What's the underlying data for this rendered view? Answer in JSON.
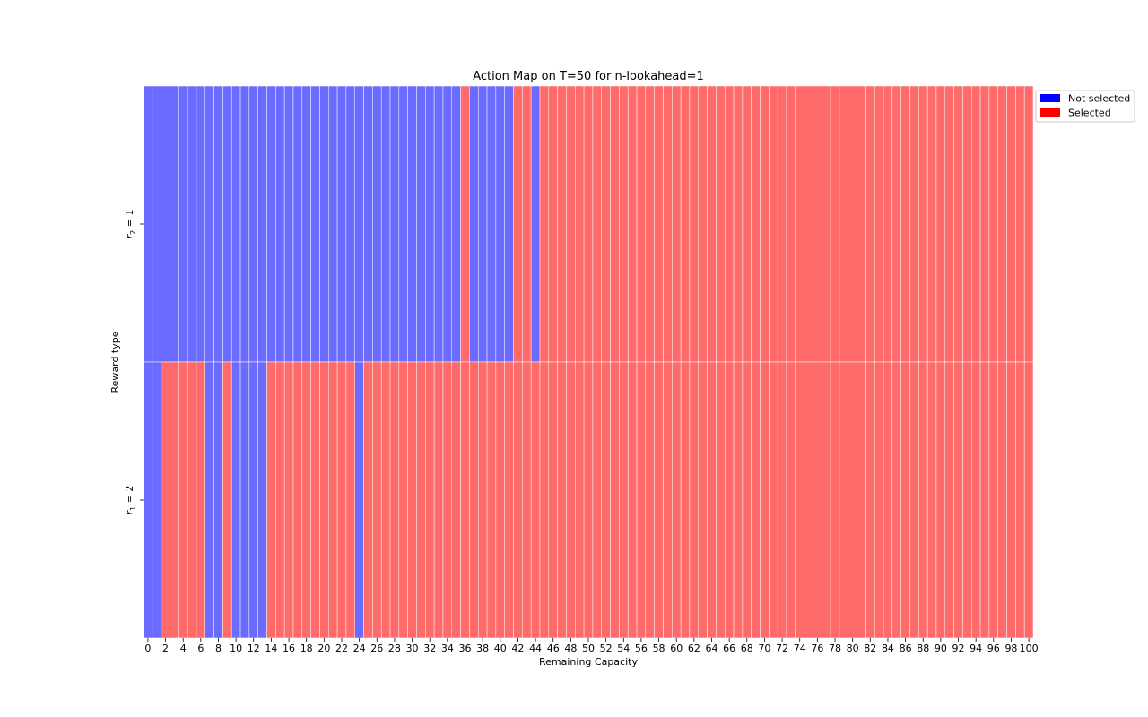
{
  "chart_data": {
    "type": "heatmap",
    "title": "Action Map on T=50 for n-lookahead=1",
    "xlabel": "Remaining Capacity",
    "ylabel": "Reward type",
    "x": [
      0,
      1,
      2,
      3,
      4,
      5,
      6,
      7,
      8,
      9,
      10,
      11,
      12,
      13,
      14,
      15,
      16,
      17,
      18,
      19,
      20,
      21,
      22,
      23,
      24,
      25,
      26,
      27,
      28,
      29,
      30,
      31,
      32,
      33,
      34,
      35,
      36,
      37,
      38,
      39,
      40,
      41,
      42,
      43,
      44,
      45,
      46,
      47,
      48,
      49,
      50,
      51,
      52,
      53,
      54,
      55,
      56,
      57,
      58,
      59,
      60,
      61,
      62,
      63,
      64,
      65,
      66,
      67,
      68,
      69,
      70,
      71,
      72,
      73,
      74,
      75,
      76,
      77,
      78,
      79,
      80,
      81,
      82,
      83,
      84,
      85,
      86,
      87,
      88,
      89,
      90,
      91,
      92,
      93,
      94,
      95,
      96,
      97,
      98,
      99,
      100
    ],
    "x_tick_labels": [
      "0",
      "2",
      "4",
      "6",
      "8",
      "10",
      "12",
      "14",
      "16",
      "18",
      "20",
      "22",
      "24",
      "26",
      "28",
      "30",
      "32",
      "34",
      "36",
      "38",
      "40",
      "42",
      "44",
      "46",
      "48",
      "50",
      "52",
      "54",
      "56",
      "58",
      "60",
      "62",
      "64",
      "66",
      "68",
      "70",
      "72",
      "74",
      "76",
      "78",
      "80",
      "82",
      "84",
      "86",
      "88",
      "90",
      "92",
      "94",
      "96",
      "98",
      "100"
    ],
    "rows": [
      {
        "label": "r_2 = 1",
        "label_main": "r",
        "label_sub": "2",
        "label_rest": " = 1",
        "values": [
          0,
          0,
          0,
          0,
          0,
          0,
          0,
          0,
          0,
          0,
          0,
          0,
          0,
          0,
          0,
          0,
          0,
          0,
          0,
          0,
          0,
          0,
          0,
          0,
          0,
          0,
          0,
          0,
          0,
          0,
          0,
          0,
          0,
          0,
          0,
          0,
          1,
          0,
          0,
          0,
          0,
          0,
          1,
          1,
          0,
          1,
          1,
          1,
          1,
          1,
          1,
          1,
          1,
          1,
          1,
          1,
          1,
          1,
          1,
          1,
          1,
          1,
          1,
          1,
          1,
          1,
          1,
          1,
          1,
          1,
          1,
          1,
          1,
          1,
          1,
          1,
          1,
          1,
          1,
          1,
          1,
          1,
          1,
          1,
          1,
          1,
          1,
          1,
          1,
          1,
          1,
          1,
          1,
          1,
          1,
          1,
          1,
          1,
          1,
          1,
          1
        ]
      },
      {
        "label": "r_1 = 2",
        "label_main": "r",
        "label_sub": "1",
        "label_rest": " = 2",
        "values": [
          0,
          0,
          1,
          1,
          1,
          1,
          1,
          0,
          0,
          1,
          0,
          0,
          0,
          0,
          1,
          1,
          1,
          1,
          1,
          1,
          1,
          1,
          1,
          1,
          0,
          1,
          1,
          1,
          1,
          1,
          1,
          1,
          1,
          1,
          1,
          1,
          1,
          1,
          1,
          1,
          1,
          1,
          1,
          1,
          1,
          1,
          1,
          1,
          1,
          1,
          1,
          1,
          1,
          1,
          1,
          1,
          1,
          1,
          1,
          1,
          1,
          1,
          1,
          1,
          1,
          1,
          1,
          1,
          1,
          1,
          1,
          1,
          1,
          1,
          1,
          1,
          1,
          1,
          1,
          1,
          1,
          1,
          1,
          1,
          1,
          1,
          1,
          1,
          1,
          1,
          1,
          1,
          1,
          1,
          1,
          1,
          1,
          1,
          1,
          1,
          1
        ]
      }
    ],
    "legend": {
      "placement": "top-right, outside plot",
      "entries": [
        {
          "label": "Not selected",
          "value": 0,
          "color": "#0000ff"
        },
        {
          "label": "Selected",
          "value": 1,
          "color": "#ff0000"
        }
      ]
    },
    "cell_colors": {
      "0": "#6b6bff",
      "1": "#ff6b6b"
    },
    "cell_separator_color": "#ffffff",
    "grid": false
  }
}
